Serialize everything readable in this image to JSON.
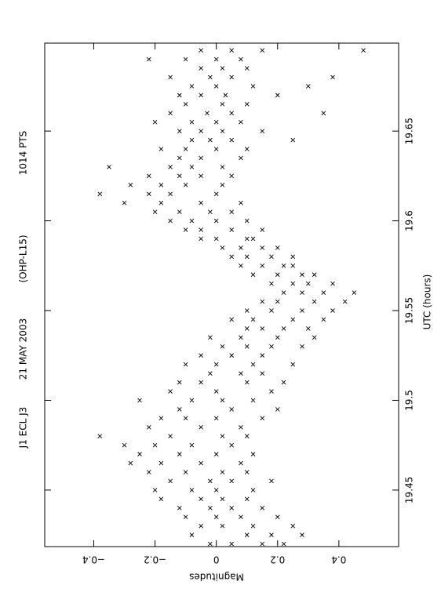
{
  "chart_data": {
    "type": "scatter",
    "title": [
      "J1 ECL J3",
      "21 MAY 2003",
      "(OHP-L15)",
      "1014 PTS"
    ],
    "x_label": "UTC (hours)",
    "y_label": "Magnitudes",
    "xlim": [
      19.4185,
      19.699
    ],
    "ylim": [
      -0.56,
      0.595
    ],
    "xticks": [
      19.45,
      19.5,
      19.55,
      19.6,
      19.65
    ],
    "yticks": [
      {
        "value": -0.4,
        "label": "−0.4"
      },
      {
        "value": -0.2,
        "label": "−0.2"
      },
      0,
      0.2,
      0.4
    ],
    "color": "#000000",
    "x": [
      19.42,
      19.42,
      19.42,
      19.42,
      19.425,
      19.425,
      19.425,
      19.425,
      19.43,
      19.43,
      19.43,
      19.43,
      19.435,
      19.435,
      19.435,
      19.435,
      19.44,
      19.44,
      19.44,
      19.44,
      19.445,
      19.445,
      19.445,
      19.445,
      19.45,
      19.45,
      19.45,
      19.45,
      19.455,
      19.455,
      19.455,
      19.455,
      19.46,
      19.46,
      19.46,
      19.46,
      19.465,
      19.465,
      19.465,
      19.465,
      19.47,
      19.47,
      19.47,
      19.47,
      19.475,
      19.475,
      19.475,
      19.475,
      19.48,
      19.48,
      19.48,
      19.48,
      19.485,
      19.485,
      19.485,
      19.49,
      19.49,
      19.49,
      19.49,
      19.495,
      19.495,
      19.495,
      19.5,
      19.5,
      19.5,
      19.5,
      19.505,
      19.505,
      19.505,
      19.51,
      19.51,
      19.51,
      19.51,
      19.515,
      19.515,
      19.515,
      19.52,
      19.52,
      19.52,
      19.52,
      19.525,
      19.525,
      19.525,
      19.53,
      19.53,
      19.53,
      19.53,
      19.535,
      19.535,
      19.535,
      19.535,
      19.54,
      19.54,
      19.54,
      19.54,
      19.545,
      19.545,
      19.545,
      19.545,
      19.55,
      19.55,
      19.55,
      19.55,
      19.555,
      19.555,
      19.555,
      19.555,
      19.56,
      19.56,
      19.56,
      19.56,
      19.565,
      19.565,
      19.565,
      19.565,
      19.57,
      19.57,
      19.57,
      19.57,
      19.575,
      19.575,
      19.575,
      19.575,
      19.58,
      19.58,
      19.58,
      19.58,
      19.585,
      19.585,
      19.585,
      19.585,
      19.59,
      19.59,
      19.59,
      19.59,
      19.595,
      19.595,
      19.595,
      19.595,
      19.6,
      19.6,
      19.6,
      19.6,
      19.605,
      19.605,
      19.605,
      19.605,
      19.61,
      19.61,
      19.61,
      19.61,
      19.615,
      19.615,
      19.615,
      19.615,
      19.62,
      19.62,
      19.62,
      19.62,
      19.625,
      19.625,
      19.625,
      19.625,
      19.63,
      19.63,
      19.63,
      19.63,
      19.635,
      19.635,
      19.635,
      19.64,
      19.64,
      19.64,
      19.64,
      19.645,
      19.645,
      19.645,
      19.645,
      19.65,
      19.65,
      19.65,
      19.65,
      19.655,
      19.655,
      19.655,
      19.655,
      19.66,
      19.66,
      19.66,
      19.66,
      19.665,
      19.665,
      19.665,
      19.67,
      19.67,
      19.67,
      19.67,
      19.675,
      19.675,
      19.675,
      19.675,
      19.68,
      19.68,
      19.68,
      19.68,
      19.685,
      19.685,
      19.685,
      19.69,
      19.69,
      19.69,
      19.69,
      19.695,
      19.695,
      19.695,
      19.695
    ],
    "y": [
      0.05,
      0.15,
      -0.02,
      0.22,
      0.1,
      0.28,
      -0.08,
      0.18,
      0.02,
      0.12,
      0.25,
      -0.05,
      -0.1,
      0.08,
      0.2,
      0,
      -0.12,
      0.05,
      -0.02,
      0.15,
      -0.18,
      -0.05,
      0.1,
      0.02,
      -0.08,
      0,
      0.12,
      -0.2,
      -0.15,
      0.05,
      -0.02,
      0.18,
      -0.22,
      -0.1,
      0.02,
      0.1,
      -0.05,
      -0.18,
      0.08,
      -0.28,
      -0.25,
      -0.12,
      0,
      0.12,
      -0.2,
      -0.08,
      0.05,
      -0.3,
      -0.15,
      0.02,
      0.1,
      -0.38,
      -0.22,
      -0.05,
      0.08,
      -0.18,
      0,
      0.15,
      -0.1,
      -0.12,
      0.05,
      0.2,
      -0.08,
      0.02,
      0.12,
      -0.25,
      -0.15,
      0,
      0.18,
      -0.05,
      0.1,
      0.22,
      -0.12,
      -0.02,
      0.08,
      0.15,
      0,
      0.12,
      0.25,
      -0.1,
      0.05,
      0.15,
      -0.05,
      0.02,
      0.18,
      0.28,
      0.1,
      0.08,
      0.2,
      0.32,
      -0.02,
      0.1,
      0.22,
      0.3,
      0.15,
      0.12,
      0.25,
      0.05,
      0.35,
      0.18,
      0.28,
      0.1,
      0.38,
      0.2,
      0.32,
      0.15,
      0.42,
      0.22,
      0.35,
      0.45,
      0.28,
      0.25,
      0.18,
      0.38,
      0.3,
      0.2,
      0.28,
      0.12,
      0.32,
      0.15,
      0.22,
      0.25,
      0.08,
      0.1,
      0.18,
      0.25,
      0.05,
      0.08,
      0.15,
      0.02,
      0.2,
      0,
      0.1,
      0.12,
      -0.05,
      -0.05,
      0.05,
      -0.1,
      0.15,
      -0.08,
      0,
      -0.15,
      0.1,
      -0.12,
      -0.02,
      -0.2,
      0.05,
      -0.18,
      -0.05,
      -0.3,
      0.08,
      -0.15,
      -0.22,
      0,
      -0.38,
      -0.1,
      -0.18,
      0.02,
      -0.28,
      -0.12,
      -0.05,
      -0.22,
      0.05,
      -0.08,
      -0.15,
      0.02,
      -0.35,
      -0.05,
      -0.12,
      0.08,
      -0.1,
      0,
      -0.18,
      0.1,
      -0.02,
      -0.08,
      0.05,
      0.25,
      -0.05,
      0.02,
      -0.12,
      0.15,
      0,
      -0.08,
      0.08,
      -0.2,
      -0.03,
      0.05,
      -0.15,
      0.35,
      0.02,
      -0.1,
      0.1,
      -0.05,
      0.03,
      -0.12,
      0.2,
      0,
      -0.08,
      0.12,
      0.3,
      0.05,
      -0.02,
      -0.15,
      0.38,
      -0.05,
      0.02,
      0.1,
      0,
      -0.1,
      0.08,
      -0.22,
      0.05,
      -0.05,
      0.15,
      0.48
    ]
  }
}
